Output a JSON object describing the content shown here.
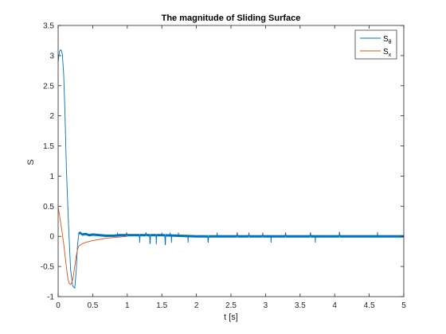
{
  "chart_data": {
    "type": "line",
    "title": "The magnitude of Sliding Surface",
    "xlabel": "t [s]",
    "ylabel": "S",
    "xlim": [
      0,
      5
    ],
    "ylim": [
      -1,
      3.5
    ],
    "xticks": [
      0,
      0.5,
      1,
      1.5,
      2,
      2.5,
      3,
      3.5,
      4,
      4.5,
      5
    ],
    "xtick_labels": [
      "0",
      "0.5",
      "1",
      "1.5",
      "2",
      "2.5",
      "3",
      "3.5",
      "4",
      "4.5",
      "5"
    ],
    "yticks": [
      -1,
      -0.5,
      0,
      0.5,
      1,
      1.5,
      2,
      2.5,
      3,
      3.5
    ],
    "ytick_labels": [
      "-1",
      "-0.5",
      "0",
      "0.5",
      "1",
      "1.5",
      "2",
      "2.5",
      "3",
      "3.5"
    ],
    "grid": false,
    "legend_position": "top-right",
    "series": [
      {
        "name": "S",
        "subscript": "θ",
        "color": "#0072BD",
        "x": [
          0,
          0.02,
          0.04,
          0.06,
          0.08,
          0.1,
          0.12,
          0.15,
          0.18,
          0.21,
          0.24,
          0.26,
          0.28,
          0.3,
          0.32,
          0.35,
          0.4,
          0.45,
          0.5,
          0.6,
          0.7,
          0.8,
          0.9,
          1.0,
          1.2,
          1.5,
          2.0,
          2.5,
          3.0,
          3.5,
          4.0,
          4.5,
          5.0
        ],
        "y": [
          2.9,
          3.07,
          3.1,
          3.03,
          2.7,
          2.0,
          1.1,
          0.2,
          -0.55,
          -0.82,
          -0.86,
          -0.6,
          -0.15,
          0.05,
          0.06,
          0.03,
          0.04,
          0.02,
          0.03,
          0.02,
          0.01,
          0.01,
          0.02,
          0.02,
          0.02,
          0.02,
          0.0,
          0.0,
          0.0,
          0.0,
          0.0,
          0.0,
          0.0
        ],
        "chatter_amplitude": 0.03,
        "spikes": [
          [
            0.86,
            0.06
          ],
          [
            0.99,
            0.06
          ],
          [
            1.18,
            -0.1
          ],
          [
            1.27,
            0.06
          ],
          [
            1.33,
            -0.12
          ],
          [
            1.42,
            -0.13
          ],
          [
            1.5,
            0.06
          ],
          [
            1.55,
            -0.14
          ],
          [
            1.62,
            0.06
          ],
          [
            1.64,
            -0.1
          ],
          [
            1.74,
            0.06
          ],
          [
            1.88,
            -0.1
          ],
          [
            2.17,
            -0.1
          ],
          [
            2.3,
            0.06
          ],
          [
            2.59,
            0.06
          ],
          [
            2.76,
            0.06
          ],
          [
            2.96,
            0.06
          ],
          [
            3.08,
            0.08
          ],
          [
            3.08,
            -0.1
          ],
          [
            3.29,
            0.06
          ],
          [
            3.65,
            0.06
          ],
          [
            3.72,
            -0.1
          ],
          [
            4.07,
            0.07
          ],
          [
            4.62,
            0.07
          ]
        ]
      },
      {
        "name": "S",
        "subscript": "x",
        "color": "#D95319",
        "x": [
          0,
          0.02,
          0.04,
          0.06,
          0.08,
          0.1,
          0.12,
          0.14,
          0.16,
          0.18,
          0.2,
          0.22,
          0.24,
          0.26,
          0.28,
          0.3,
          0.35,
          0.4,
          0.5,
          0.6,
          0.7,
          1.0
        ],
        "y": [
          0.48,
          0.35,
          0.2,
          0.05,
          -0.12,
          -0.32,
          -0.52,
          -0.7,
          -0.78,
          -0.8,
          -0.76,
          -0.66,
          -0.5,
          -0.34,
          -0.22,
          -0.16,
          -0.12,
          -0.1,
          -0.07,
          -0.05,
          -0.03,
          0.0
        ]
      }
    ]
  }
}
